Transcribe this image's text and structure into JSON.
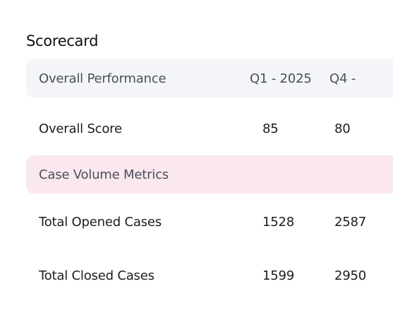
{
  "title": "Scorecard",
  "header": {
    "label": "Overall Performance",
    "columns": [
      "Q1 - 2025",
      "Q4 - "
    ]
  },
  "rows": [
    {
      "label": "Overall Score",
      "values": [
        "85",
        "80"
      ]
    }
  ],
  "section": {
    "label": "Case Volume Metrics"
  },
  "section_rows": [
    {
      "label": "Total Opened Cases",
      "values": [
        "1528",
        "2587"
      ]
    },
    {
      "label": "Total Closed Cases",
      "values": [
        "1599",
        "2950"
      ]
    }
  ]
}
